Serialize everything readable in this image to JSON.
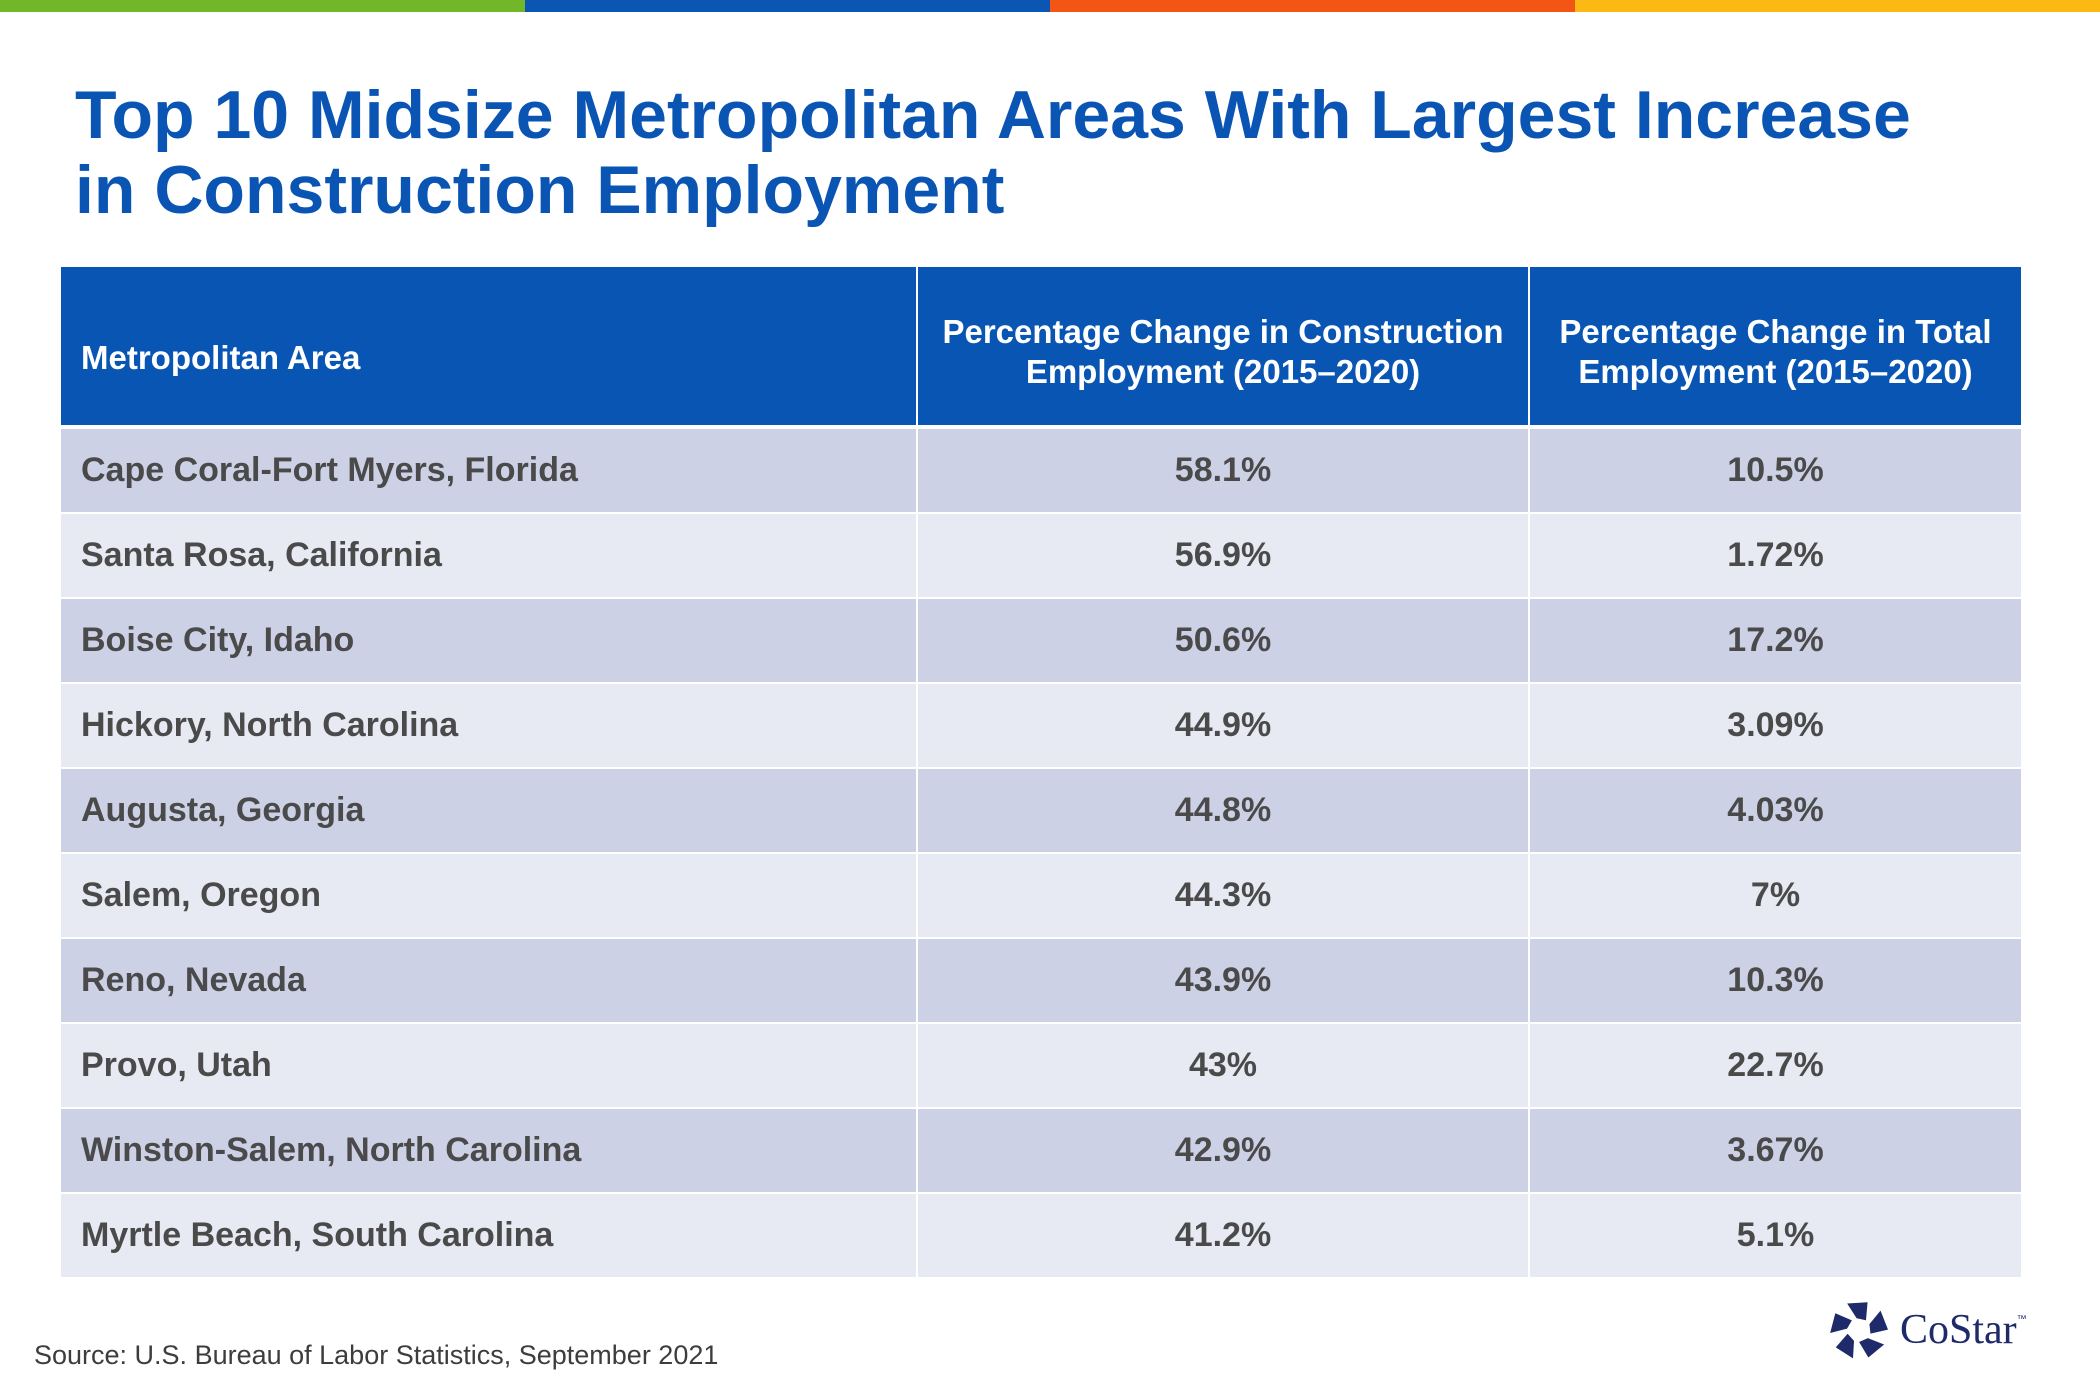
{
  "colors": {
    "bar": [
      "#72b62a",
      "#0b55b5",
      "#f25514",
      "#fcb913"
    ],
    "title": "#0a55b4",
    "header_bg": "#0955b3",
    "row_odd": "#cdd1e6",
    "row_even": "#e7e9f3",
    "cell_text": "#4a4a4a",
    "logo": "#1e2a6a"
  },
  "title_lines": [
    "Top 10 Midsize Metropolitan Areas With Largest Increase",
    "in Construction Employment"
  ],
  "chart_data": {
    "type": "table",
    "title": "Top 10 Midsize Metropolitan Areas With Largest Increase in Construction Employment",
    "columns": [
      {
        "lines": [
          "Metropolitan Area"
        ]
      },
      {
        "lines": [
          "Percentage Change in Construction",
          "Employment (2015–2020)"
        ]
      },
      {
        "lines": [
          "Percentage Change in Total",
          "Employment (2015–2020)"
        ]
      }
    ],
    "rows": [
      [
        "Cape Coral-Fort Myers, Florida",
        "58.1%",
        "10.5%"
      ],
      [
        "Santa Rosa, California",
        "56.9%",
        "1.72%"
      ],
      [
        "Boise City, Idaho",
        "50.6%",
        "17.2%"
      ],
      [
        "Hickory, North Carolina",
        "44.9%",
        "3.09%"
      ],
      [
        "Augusta, Georgia",
        "44.8%",
        "4.03%"
      ],
      [
        "Salem, Oregon",
        "44.3%",
        "7%"
      ],
      [
        "Reno, Nevada",
        "43.9%",
        "10.3%"
      ],
      [
        "Provo, Utah",
        "43%",
        "22.7%"
      ],
      [
        "Winston-Salem, North Carolina",
        "42.9%",
        "3.67%"
      ],
      [
        "Myrtle Beach, South Carolina",
        "41.2%",
        "5.1%"
      ]
    ]
  },
  "source": "Source: U.S. Bureau of Labor Statistics, September 2021",
  "logo": {
    "icon": "costar-star-icon",
    "text": "CoStar",
    "tm": "™"
  }
}
